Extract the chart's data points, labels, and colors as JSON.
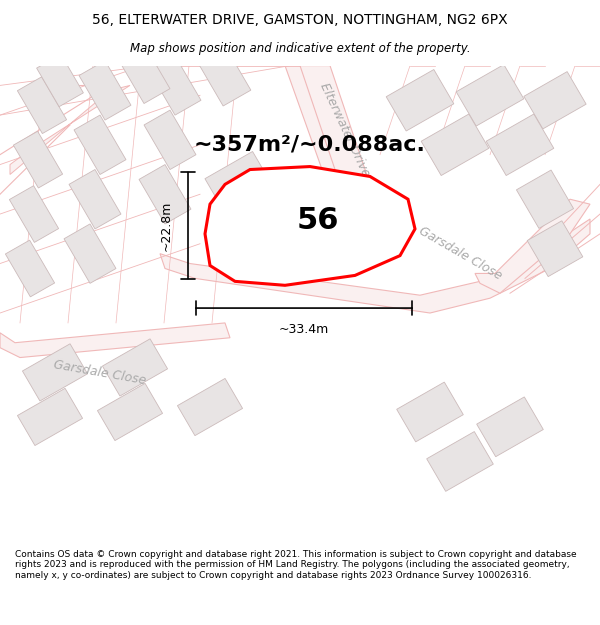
{
  "title": "56, ELTERWATER DRIVE, GAMSTON, NOTTINGHAM, NG2 6PX",
  "subtitle": "Map shows position and indicative extent of the property.",
  "footer": "Contains OS data © Crown copyright and database right 2021. This information is subject to Crown copyright and database rights 2023 and is reproduced with the permission of HM Land Registry. The polygons (including the associated geometry, namely x, y co-ordinates) are subject to Crown copyright and database rights 2023 Ordnance Survey 100026316.",
  "area_label": "~357m²/~0.088ac.",
  "number_label": "56",
  "width_label": "~33.4m",
  "height_label": "~22.8m",
  "map_bg": "#ffffff",
  "plot_bg": "#ffffff",
  "road_line_color": "#f0b8b8",
  "road_fill_color": "#faf0f0",
  "building_edge_color": "#ccbbbb",
  "building_fill_color": "#e8e4e4",
  "street_label_color": "#aaaaaa",
  "title_fontsize": 10,
  "subtitle_fontsize": 8.5,
  "footer_fontsize": 6.5,
  "area_fontsize": 16,
  "number_fontsize": 22,
  "dim_fontsize": 9,
  "street_fontsize": 9
}
